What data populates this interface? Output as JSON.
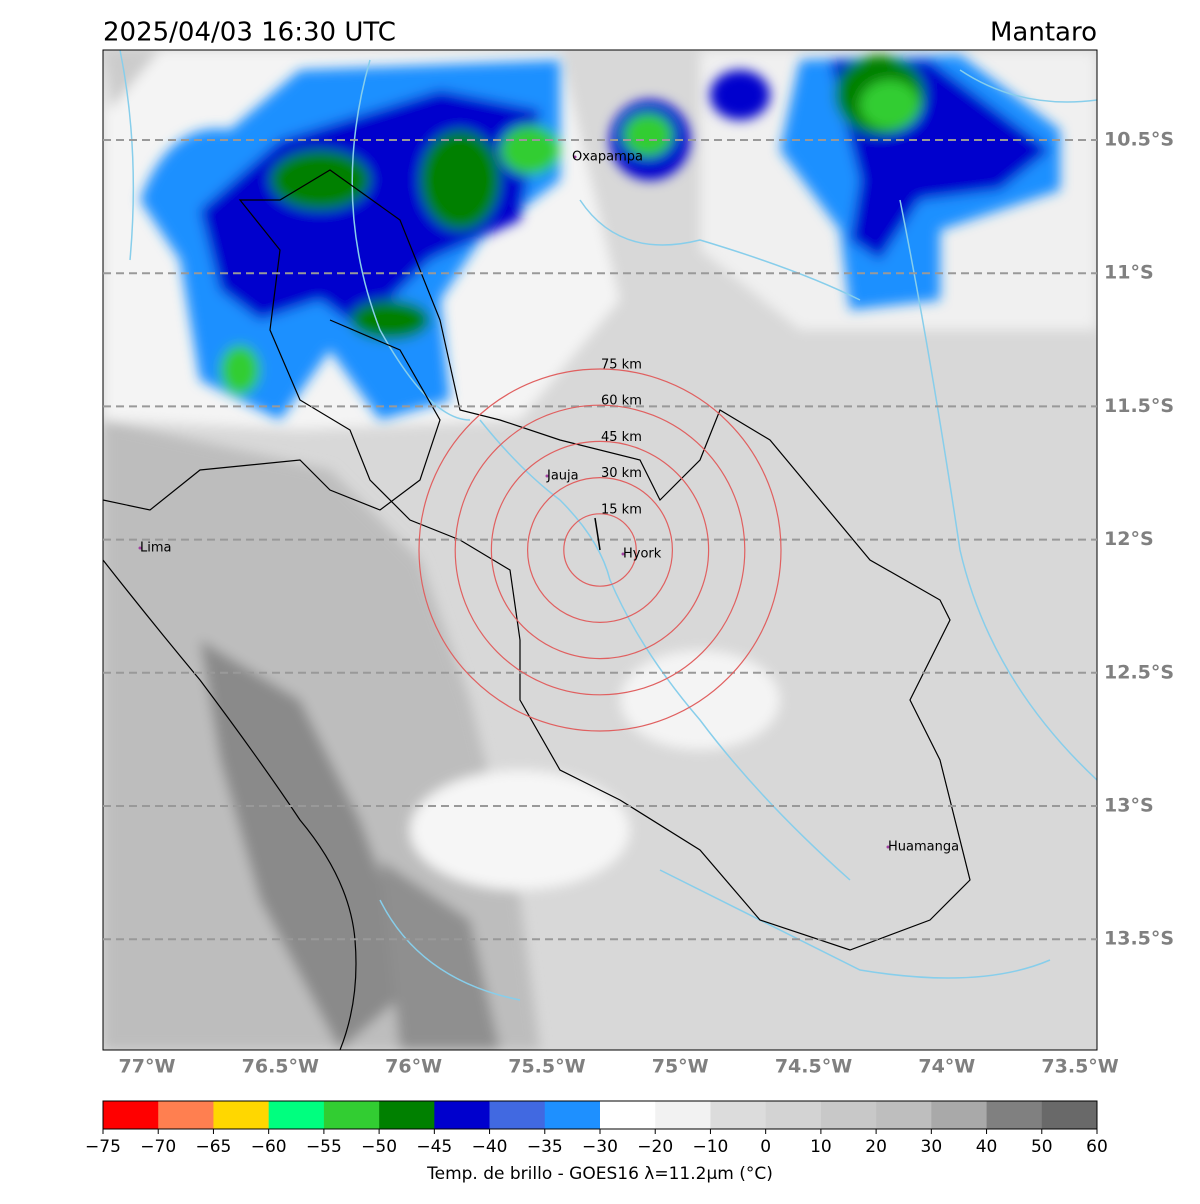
{
  "header": {
    "title": "2025/04/03 16:30 UTC",
    "region": "Mantaro"
  },
  "map": {
    "lat_labels": [
      "10.5°S",
      "11°S",
      "11.5°S",
      "12°S",
      "12.5°S",
      "13°S",
      "13.5°S"
    ],
    "lon_labels": [
      "77°W",
      "76.5°W",
      "76°W",
      "75.5°W",
      "75°W",
      "74.5°W",
      "74°W",
      "73.5°W"
    ],
    "rings": [
      "15 km",
      "30 km",
      "45 km",
      "60 km",
      "75 km"
    ],
    "places": [
      "Oxapampa",
      "Jauja",
      "Hyork",
      "Lima",
      "Huamanga"
    ]
  },
  "colorbar": {
    "ticks": [
      "−75",
      "−70",
      "−65",
      "−60",
      "−55",
      "−50",
      "−45",
      "−40",
      "−35",
      "−30",
      "−20",
      "−10",
      "0",
      "10",
      "20",
      "30",
      "40",
      "50",
      "60"
    ],
    "colors": [
      "#ff0000",
      "#ff7f50",
      "#ffd700",
      "#00ff7f",
      "#32cd32",
      "#008000",
      "#0000cd",
      "#4169e1",
      "#1e90ff",
      "#ffffff",
      "#f2f2f2",
      "#dcdcdc",
      "#d3d3d3",
      "#c8c8c8",
      "#bebebe",
      "#a9a9a9",
      "#808080",
      "#696969",
      "#000000"
    ],
    "label": "Temp. de brillo - GOES16 λ=11.2μm (°C)"
  }
}
